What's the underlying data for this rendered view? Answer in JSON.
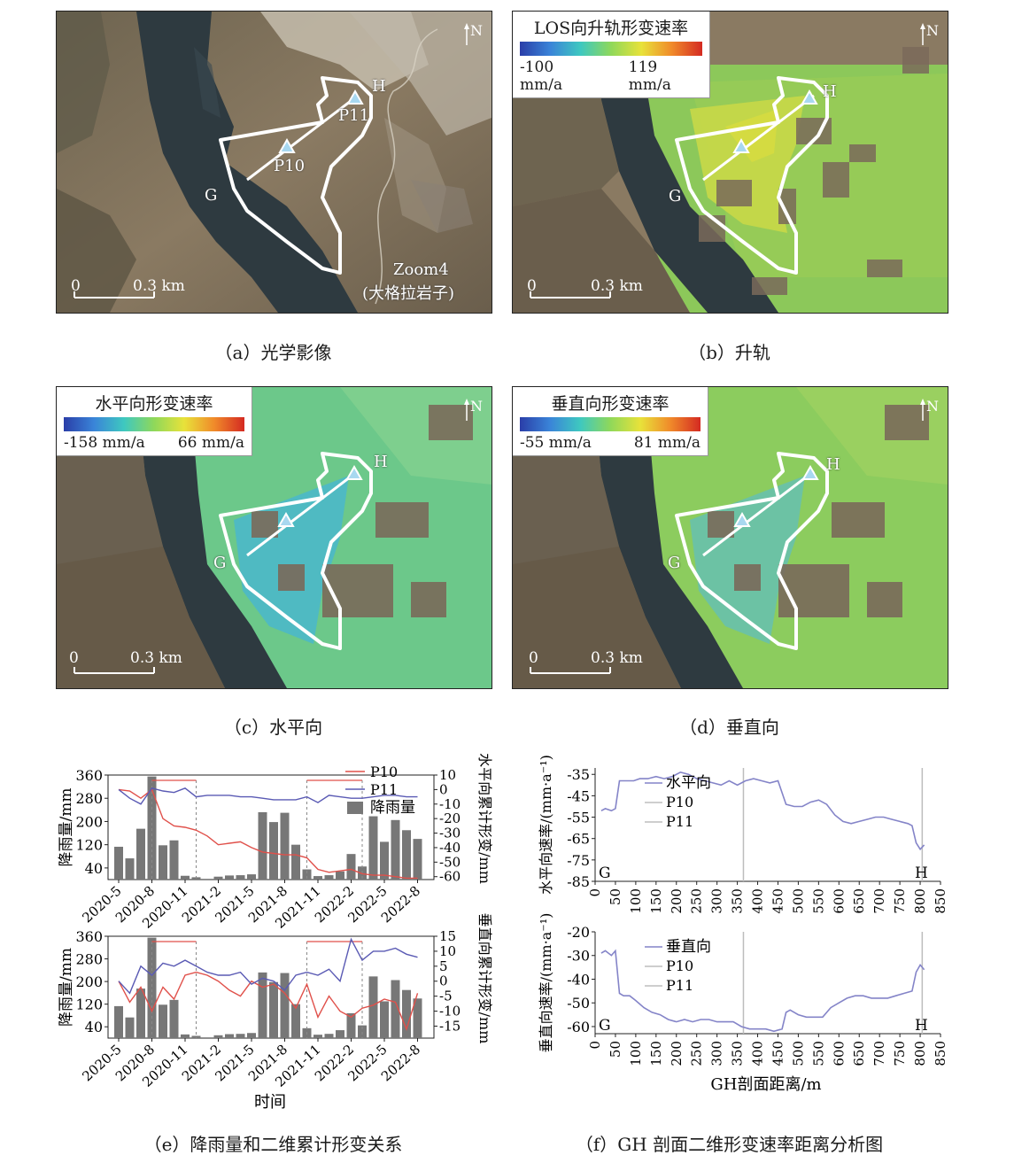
{
  "panel_a": {
    "caption": "（a）光学影像",
    "labels": {
      "G": "G",
      "H": "H",
      "P10": "P10",
      "P11": "P11",
      "north": "N"
    },
    "scale": {
      "zero": "0",
      "len": "0.3 km"
    },
    "zoom_note": "Zoom4",
    "zoom_site": "(大格拉岩子)"
  },
  "panel_b": {
    "caption": "（b）升轨",
    "legend_title": "LOS向升轨形变速率",
    "legend_min": "-100 mm/a",
    "legend_max": "119 mm/a",
    "labels": {
      "G": "G",
      "H": "H",
      "north": "N"
    },
    "scale": {
      "zero": "0",
      "len": "0.3 km"
    }
  },
  "panel_c": {
    "caption": "（c）水平向",
    "legend_title": "水平向形变速率",
    "legend_min": "-158 mm/a",
    "legend_max": "66 mm/a",
    "labels": {
      "G": "G",
      "H": "H",
      "north": "N"
    },
    "scale": {
      "zero": "0",
      "len": "0.3 km"
    }
  },
  "panel_d": {
    "caption": "（d）垂直向",
    "legend_title": "垂直向形变速率",
    "legend_min": "-55 mm/a",
    "legend_max": "81 mm/a",
    "labels": {
      "G": "G",
      "H": "H",
      "north": "N"
    },
    "scale": {
      "zero": "0",
      "len": "0.3 km"
    }
  },
  "panel_e": {
    "caption": "（e）降雨量和二维累计形变关系"
  },
  "panel_f": {
    "caption": "（f）GH 剖面二维形变速率距离分析图"
  },
  "colors": {
    "p10": "#e0504a",
    "p11": "#5a5ab4",
    "rain": "#777777",
    "profile": "#8484c8",
    "marker": "#bdbdbd"
  },
  "chart_data": [
    {
      "type": "bar+line",
      "id": "e-horizontal",
      "categories": [
        "2020-5",
        "2020-8",
        "2020-11",
        "2021-2",
        "2021-5",
        "2021-8",
        "2021-11",
        "2022-2",
        "2022-5",
        "2022-8"
      ],
      "ylabel": "降雨量/mm",
      "ylim": [
        0,
        360
      ],
      "yticks": [
        40,
        120,
        200,
        280,
        360
      ],
      "y2label": "水平向累计形变/mm",
      "y2lim": [
        -62,
        10
      ],
      "y2ticks": [
        -60,
        -50,
        -40,
        -30,
        -20,
        -10,
        0,
        10
      ],
      "legend": [
        "P10",
        "P11",
        "降雨量"
      ],
      "rain_months_from_2020_5": [
        0,
        1,
        2,
        3,
        4,
        5,
        6,
        7,
        9,
        10,
        11,
        12,
        13,
        14,
        15,
        16,
        17,
        18,
        19,
        20,
        21,
        22,
        23,
        24,
        25,
        26,
        27
      ],
      "rain_values": [
        113,
        73,
        175,
        355,
        118,
        135,
        13,
        8,
        10,
        14,
        15,
        18,
        232,
        198,
        230,
        120,
        35,
        12,
        15,
        28,
        88,
        45,
        218,
        130,
        205,
        170,
        140
      ],
      "p10": {
        "x": [
          0,
          1,
          2,
          3,
          4,
          5,
          6,
          7,
          8,
          9,
          10,
          11,
          12,
          13,
          14,
          15,
          16,
          17,
          18,
          19,
          20,
          21,
          22,
          23,
          24,
          25,
          26,
          27
        ],
        "y": [
          0,
          -1,
          -6,
          0,
          -20,
          -25,
          -26,
          -28,
          -32,
          -38,
          -37,
          -36,
          -40,
          -43,
          -44,
          -45,
          -45,
          -47,
          -55,
          -57,
          -56,
          -55,
          -58,
          -59,
          -59,
          -60,
          -61,
          -61
        ]
      },
      "p11": {
        "x": [
          0,
          1,
          2,
          3,
          4,
          5,
          6,
          7,
          8,
          9,
          10,
          11,
          12,
          13,
          14,
          15,
          16,
          17,
          18,
          19,
          20,
          21,
          22,
          23,
          24,
          25,
          26,
          27
        ],
        "y": [
          0,
          -6,
          -10,
          1,
          -1,
          -2,
          1,
          -5,
          -4,
          -4,
          -4,
          -5,
          -5,
          -6,
          -7,
          -7,
          -7,
          -5,
          -9,
          -4,
          -5,
          -6,
          -6,
          -5,
          -4,
          -4,
          -5,
          -5
        ]
      },
      "bracket_months": [
        [
          3,
          7
        ],
        [
          17,
          22
        ]
      ]
    },
    {
      "type": "bar+line",
      "id": "e-vertical",
      "categories": [
        "2020-5",
        "2020-8",
        "2020-11",
        "2021-2",
        "2021-5",
        "2021-8",
        "2021-11",
        "2022-2",
        "2022-5",
        "2022-8"
      ],
      "xlabel": "时间",
      "ylabel": "降雨量/mm",
      "ylim": [
        0,
        360
      ],
      "yticks": [
        40,
        120,
        200,
        280,
        360
      ],
      "y2label": "垂直向累计形变/mm",
      "y2lim": [
        -19,
        15
      ],
      "y2ticks": [
        -15,
        -10,
        -5,
        0,
        5,
        10,
        15
      ],
      "rain_months_from_2020_5": [
        0,
        1,
        2,
        3,
        4,
        5,
        6,
        7,
        9,
        10,
        11,
        12,
        13,
        14,
        15,
        16,
        17,
        18,
        19,
        20,
        21,
        22,
        23,
        24,
        25,
        26,
        27
      ],
      "rain_values": [
        113,
        73,
        175,
        355,
        118,
        135,
        13,
        8,
        10,
        14,
        15,
        18,
        232,
        198,
        230,
        120,
        35,
        12,
        15,
        28,
        88,
        45,
        218,
        130,
        205,
        170,
        140
      ],
      "p10": {
        "x": [
          0,
          1,
          2,
          3,
          4,
          5,
          6,
          7,
          8,
          9,
          10,
          11,
          12,
          13,
          14,
          15,
          16,
          17,
          18,
          19,
          20,
          21,
          22,
          23,
          24,
          25,
          26,
          27
        ],
        "y": [
          0,
          -7,
          -2,
          -10,
          -2,
          -6,
          2,
          3,
          2,
          0,
          -3,
          -5,
          0,
          -2,
          -1,
          -4,
          -9,
          -1,
          -12,
          -5,
          -10,
          -12,
          -9,
          -8,
          -6,
          -7,
          -16,
          -4
        ]
      },
      "p11": {
        "x": [
          0,
          1,
          2,
          3,
          4,
          5,
          6,
          7,
          8,
          9,
          10,
          11,
          12,
          13,
          14,
          15,
          16,
          17,
          18,
          19,
          20,
          21,
          22,
          23,
          24,
          25,
          26,
          27
        ],
        "y": [
          0,
          -4,
          5,
          2,
          6,
          5,
          7,
          5,
          3,
          2,
          2,
          3,
          -1,
          1,
          0,
          -3,
          2,
          3,
          2,
          4,
          0,
          14,
          7,
          10,
          10,
          11,
          9,
          8
        ]
      },
      "bracket_months": [
        [
          3,
          7
        ],
        [
          17,
          22
        ]
      ]
    },
    {
      "type": "line",
      "id": "f-horizontal",
      "ylabel": "水平向速率/(mm·a⁻¹)",
      "ylim": [
        -85,
        -32
      ],
      "yticks": [
        -85,
        -75,
        -65,
        -55,
        -45,
        -35
      ],
      "xlim": [
        0,
        850
      ],
      "xticks": [
        0,
        50,
        100,
        150,
        200,
        250,
        300,
        350,
        400,
        450,
        500,
        550,
        600,
        650,
        700,
        750,
        800,
        850
      ],
      "legend": [
        "水平向",
        "P10",
        "P11"
      ],
      "markers_x": [
        365,
        805
      ],
      "end_labels": [
        "G",
        "H"
      ],
      "x": [
        15,
        25,
        40,
        50,
        60,
        70,
        80,
        95,
        110,
        130,
        150,
        170,
        190,
        210,
        230,
        250,
        270,
        290,
        310,
        330,
        350,
        370,
        390,
        410,
        430,
        450,
        470,
        490,
        510,
        530,
        550,
        570,
        590,
        610,
        630,
        650,
        670,
        690,
        710,
        730,
        750,
        770,
        780,
        790,
        800,
        810
      ],
      "y": [
        -52,
        -51,
        -52,
        -51,
        -38,
        -38,
        -38,
        -38,
        -37,
        -37,
        -36,
        -37,
        -36,
        -34,
        -35,
        -37,
        -38,
        -39,
        -40,
        -38,
        -40,
        -38,
        -37,
        -38,
        -39,
        -38,
        -49,
        -50,
        -50,
        -48,
        -47,
        -49,
        -54,
        -57,
        -58,
        -57,
        -56,
        -55,
        -55,
        -56,
        -57,
        -58,
        -59,
        -67,
        -70,
        -68
      ]
    },
    {
      "type": "line",
      "id": "f-vertical",
      "xlabel": "GH剖面距离/m",
      "ylabel": "垂直向速率/(mm·a⁻¹)",
      "ylim": [
        -63,
        -20
      ],
      "yticks": [
        -60,
        -50,
        -40,
        -30,
        -20
      ],
      "xlim": [
        0,
        850
      ],
      "xticks": [
        0,
        50,
        100,
        150,
        200,
        250,
        300,
        350,
        400,
        450,
        500,
        550,
        600,
        650,
        700,
        750,
        800,
        850
      ],
      "legend": [
        "垂直向",
        "P10",
        "P11"
      ],
      "markers_x": [
        365,
        805
      ],
      "end_labels": [
        "G",
        "H"
      ],
      "x": [
        15,
        25,
        40,
        50,
        60,
        70,
        85,
        100,
        120,
        140,
        160,
        180,
        200,
        220,
        240,
        260,
        280,
        300,
        320,
        340,
        360,
        380,
        400,
        420,
        440,
        460,
        470,
        480,
        500,
        520,
        540,
        560,
        580,
        600,
        620,
        640,
        660,
        680,
        700,
        720,
        740,
        760,
        780,
        790,
        800,
        810
      ],
      "y": [
        -29,
        -28,
        -30,
        -28,
        -46,
        -47,
        -47,
        -49,
        -52,
        -54,
        -55,
        -57,
        -58,
        -57,
        -58,
        -57,
        -57,
        -58,
        -58,
        -58,
        -60,
        -61,
        -61,
        -61,
        -62,
        -61,
        -54,
        -53,
        -55,
        -56,
        -56,
        -56,
        -52,
        -50,
        -48,
        -47,
        -47,
        -48,
        -48,
        -48,
        -47,
        -46,
        -45,
        -37,
        -34,
        -36
      ]
    }
  ]
}
